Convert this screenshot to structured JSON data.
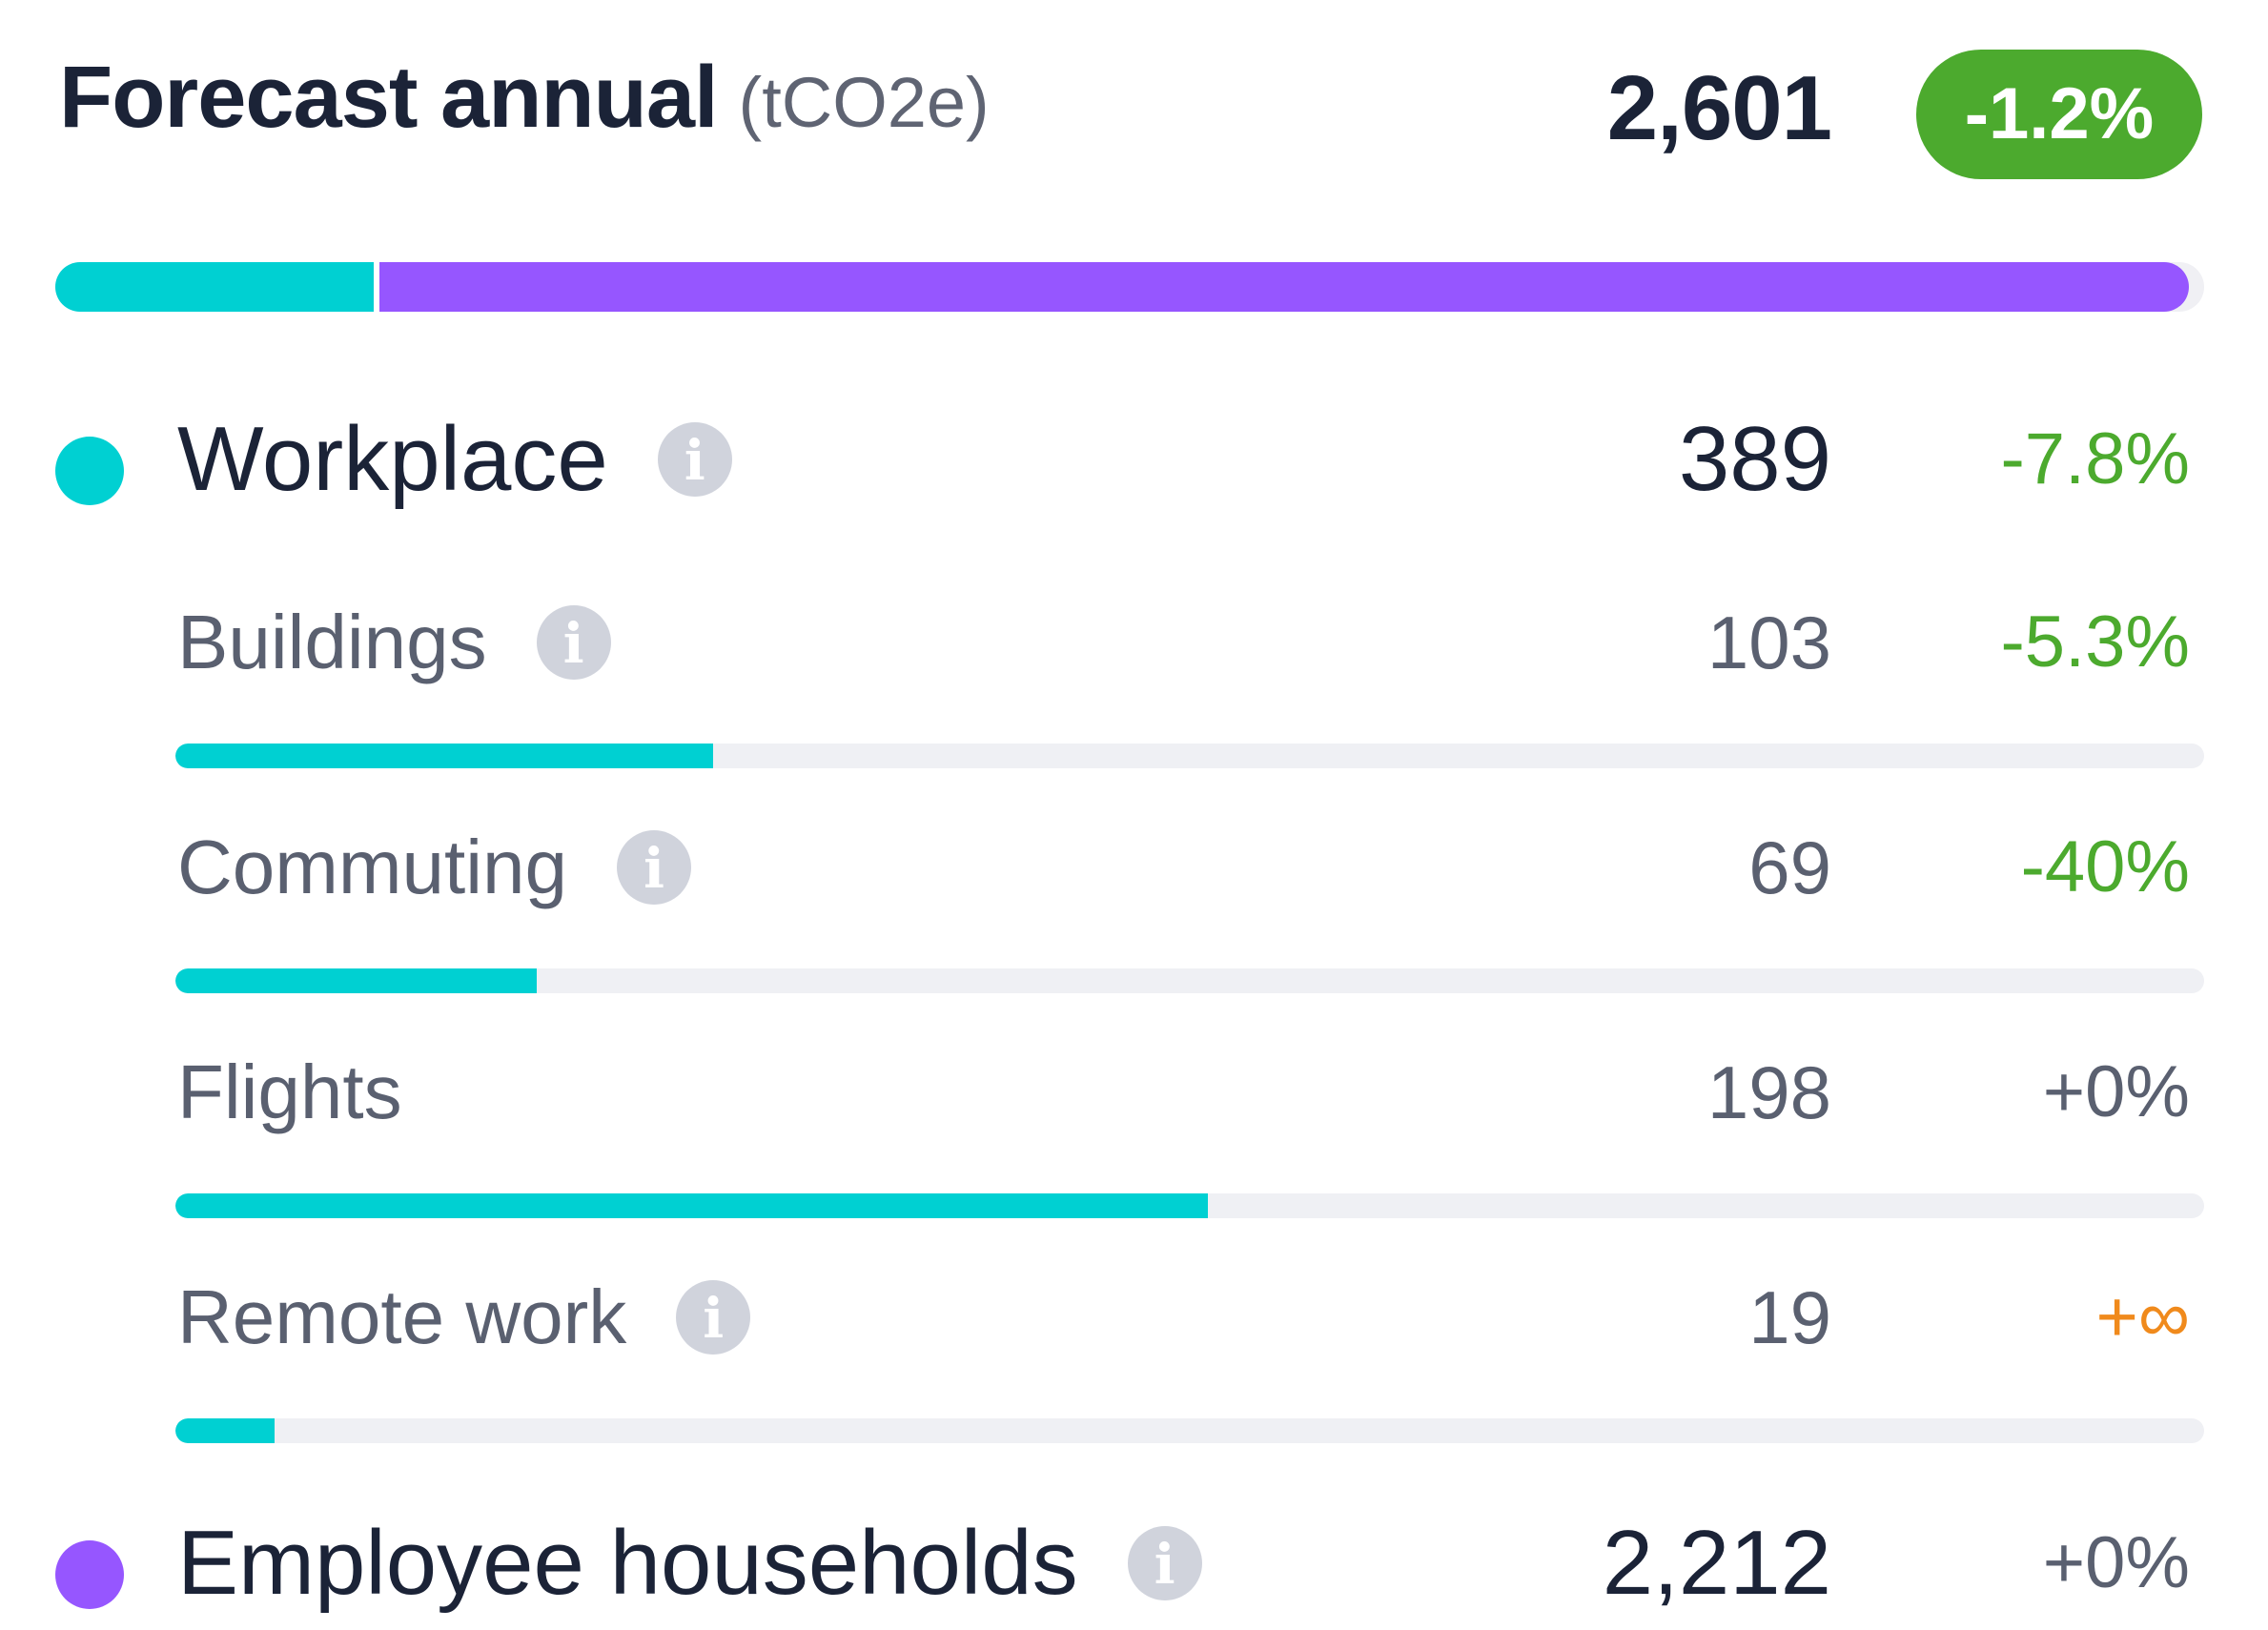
{
  "header": {
    "title": "Forecast annual",
    "unit": "(tCO2e)",
    "total": "2,601",
    "total_change": "-1.2%"
  },
  "colors": {
    "workplace": "#00d0d2",
    "households": "#9656ff",
    "positive_change": "#4caa2e",
    "neutral_change": "#5a6070",
    "infinite_change": "#f08a1c",
    "info_icon": "#d0d3dc"
  },
  "overview_bar": {
    "segments": [
      {
        "name": "Workplace",
        "value": 389,
        "color": "#00d0d2"
      },
      {
        "name": "Employee households",
        "value": 2212,
        "color": "#9656ff"
      }
    ],
    "total": 2601
  },
  "workplace": {
    "label": "Workplace",
    "value": "389",
    "change": "-7.8%",
    "change_tone": "green",
    "icon": "info-icon",
    "subcategories": [
      {
        "label": "Buildings",
        "value": "103",
        "change": "-5.3%",
        "change_tone": "green",
        "has_info": true,
        "bar_fraction": 0.265
      },
      {
        "label": "Commuting",
        "value": "69",
        "change": "-40%",
        "change_tone": "green",
        "has_info": true,
        "bar_fraction": 0.178
      },
      {
        "label": "Flights",
        "value": "198",
        "change": "+0%",
        "change_tone": "neutral",
        "has_info": false,
        "bar_fraction": 0.509
      },
      {
        "label": "Remote work",
        "value": "19",
        "change": "+∞",
        "change_tone": "orange",
        "has_info": true,
        "bar_fraction": 0.049
      }
    ]
  },
  "households": {
    "label": "Employee households",
    "value": "2,212",
    "change": "+0%",
    "change_tone": "neutral",
    "icon": "info-icon"
  }
}
